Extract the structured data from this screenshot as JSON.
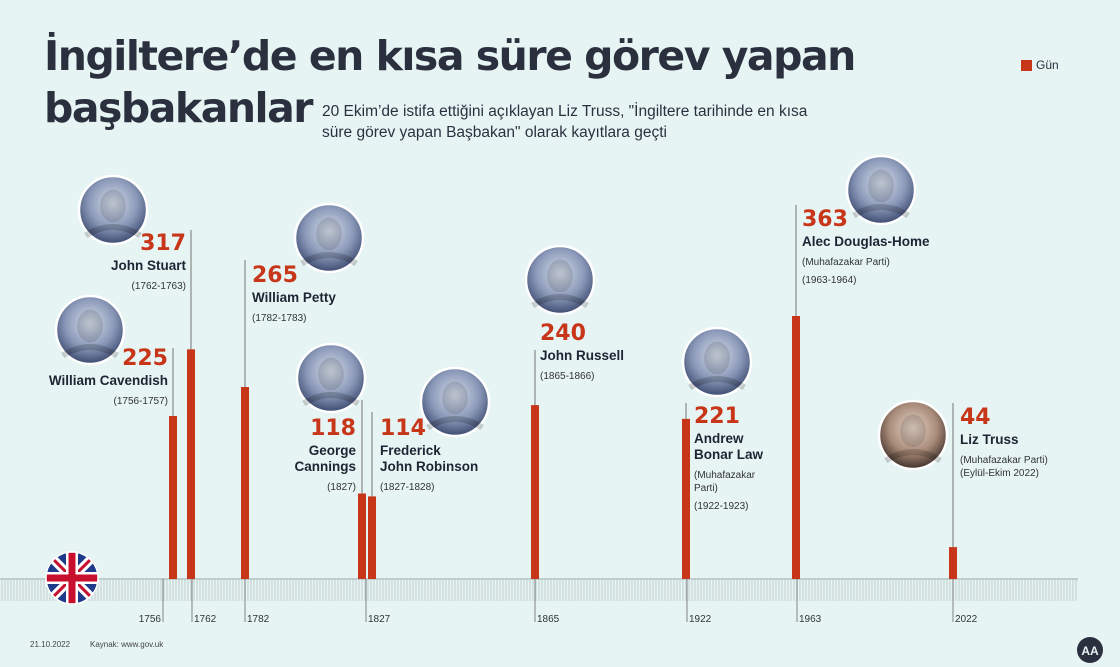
{
  "title_line1": "İngiltere’de en kısa süre görev yapan",
  "title_line2": "başbakanlar",
  "subtitle_line1": "20 Ekim’de istifa ettiğini açıklayan Liz Truss, \"İngiltere tarihinde en kısa",
  "subtitle_line2": "süre görev yapan Başbakan\" olarak kayıtlara geçti",
  "legend_label": "Gün",
  "footer_date": "21.10.2022",
  "footer_source": "Kaynak: www.gov.uk",
  "logo_text": "AA",
  "colors": {
    "bar": "#c8361a",
    "background": "#e6f4f4",
    "text": "#2b303f"
  },
  "chart_data": {
    "type": "bar",
    "ylabel": "Gün",
    "ylim": [
      0,
      400
    ],
    "axis_ticks": [
      "1756",
      "1762",
      "1782",
      "1827",
      "1865",
      "1922",
      "1963",
      "2022"
    ],
    "bars": [
      {
        "name_lines": [
          "William Cavendish"
        ],
        "value": 225,
        "years": "(1756-1757)"
      },
      {
        "name_lines": [
          "John Stuart"
        ],
        "value": 317,
        "years": "(1762-1763)"
      },
      {
        "name_lines": [
          "William Petty"
        ],
        "value": 265,
        "years": "(1782-1783)"
      },
      {
        "name_lines": [
          "George",
          "Cannings"
        ],
        "value": 118,
        "years": "(1827)"
      },
      {
        "name_lines": [
          "Frederick",
          "John Robinson"
        ],
        "value": 114,
        "years": "(1827-1828)"
      },
      {
        "name_lines": [
          "John Russell"
        ],
        "value": 240,
        "years": "(1865-1866)"
      },
      {
        "name_lines": [
          "Andrew",
          "Bonar Law"
        ],
        "value": 221,
        "party_lines": [
          "(Muhafazakar",
          "Parti)"
        ],
        "years": "(1922-1923)"
      },
      {
        "name_lines": [
          "Alec Douglas-Home"
        ],
        "value": 363,
        "party_lines": [
          "(Muhafazakar Parti)"
        ],
        "years": "(1963-1964)"
      },
      {
        "name_lines": [
          "Liz Truss"
        ],
        "value": 44,
        "party_lines": [
          "(Muhafazakar Parti)",
          "(Eylül-Ekim 2022)"
        ]
      }
    ]
  }
}
